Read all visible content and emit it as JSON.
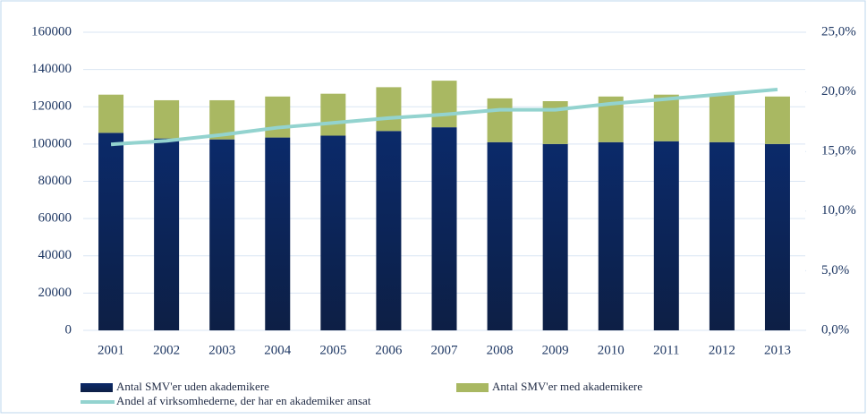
{
  "chart_data": {
    "type": "bar",
    "categories": [
      "2001",
      "2002",
      "2003",
      "2004",
      "2005",
      "2006",
      "2007",
      "2008",
      "2009",
      "2010",
      "2011",
      "2012",
      "2013"
    ],
    "series": [
      {
        "name": "Antal SMV'er uden akademikere",
        "color": "#0f2c60",
        "values": [
          106000,
          103000,
          102500,
          103500,
          104500,
          107000,
          109000,
          101000,
          100000,
          101000,
          101500,
          101000,
          100000
        ]
      },
      {
        "name": "Antal SMV'er med akademikere",
        "color": "#a9b862",
        "values": [
          20500,
          20500,
          21000,
          22000,
          22500,
          23500,
          25000,
          23500,
          23000,
          24500,
          25000,
          26000,
          25500
        ]
      },
      {
        "name": "Andel af virksomhederne, der har en akademiker ansat",
        "color": "#93d3cf",
        "axis": "y2",
        "type": "line",
        "values": [
          15.6,
          15.9,
          16.4,
          17.0,
          17.4,
          17.8,
          18.1,
          18.5,
          18.5,
          19.0,
          19.4,
          19.8,
          20.2
        ]
      }
    ],
    "stacked": true,
    "ylim": [
      0,
      160000
    ],
    "yticks": [
      0,
      20000,
      40000,
      60000,
      80000,
      100000,
      120000,
      140000,
      160000
    ],
    "y2lim": [
      0,
      25
    ],
    "y2ticks": [
      {
        "value": 0,
        "label": "0,0%"
      },
      {
        "value": 5,
        "label": "5,0%"
      },
      {
        "value": 10,
        "label": "10,0%"
      },
      {
        "value": 15,
        "label": "15,0%"
      },
      {
        "value": 20,
        "label": "20,0%"
      },
      {
        "value": 25,
        "label": "25,0%"
      }
    ],
    "grid": true,
    "legend": "bottom"
  }
}
